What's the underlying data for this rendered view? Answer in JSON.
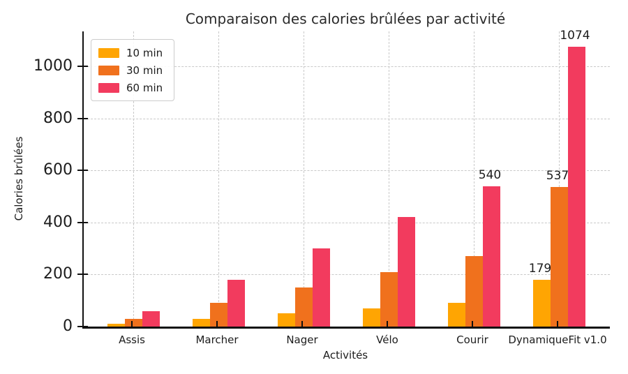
{
  "chart_data": {
    "type": "bar",
    "title": "Comparaison des calories brûlées par activité",
    "xlabel": "Activités",
    "ylabel": "Calories brûlées",
    "categories": [
      "Assis",
      "Marcher",
      "Nager",
      "Vélo",
      "Courir",
      "DynamiqueFit v1.0"
    ],
    "series": [
      {
        "name": "10 min",
        "color": "#FFA502",
        "values": [
          10,
          30,
          50,
          70,
          90,
          179
        ]
      },
      {
        "name": "30 min",
        "color": "#F0711D",
        "values": [
          30,
          90,
          150,
          210,
          270,
          537
        ]
      },
      {
        "name": "60 min",
        "color": "#F23B5E",
        "values": [
          60,
          180,
          300,
          420,
          540,
          1074
        ]
      }
    ],
    "yticks": [
      0,
      200,
      400,
      600,
      800,
      1000
    ],
    "ylim": [
      0,
      1134
    ],
    "grid": true,
    "grid_style": "dashed",
    "legend_position": "upper left",
    "bar_labels": [
      {
        "category": "Courir",
        "series": "60 min",
        "text": "540"
      },
      {
        "category": "DynamiqueFit v1.0",
        "series": "10 min",
        "text": "179"
      },
      {
        "category": "DynamiqueFit v1.0",
        "series": "30 min",
        "text": "537"
      },
      {
        "category": "DynamiqueFit v1.0",
        "series": "60 min",
        "text": "1074"
      }
    ],
    "background_color": "#ffffff"
  }
}
